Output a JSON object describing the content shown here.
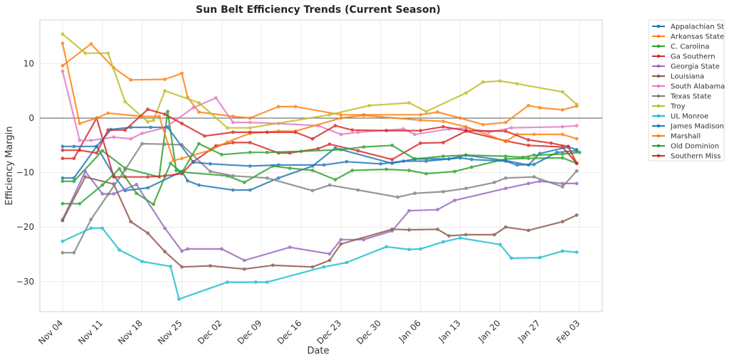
{
  "chart_data": {
    "type": "line",
    "title": "Sun Belt Efficiency Trends (Current Season)",
    "xlabel": "Date",
    "ylabel": "Efficiency Margin",
    "x_start_date": "Nov 04",
    "x_unit": "days since Nov 04",
    "xlim_days": [
      -4,
      95
    ],
    "ylim": [
      -35.5,
      18
    ],
    "x_ticks": [
      {
        "day": 0,
        "label": "Nov 04"
      },
      {
        "day": 7,
        "label": "Nov 11"
      },
      {
        "day": 14,
        "label": "Nov 18"
      },
      {
        "day": 21,
        "label": "Nov 25"
      },
      {
        "day": 28,
        "label": "Dec 02"
      },
      {
        "day": 35,
        "label": "Dec 09"
      },
      {
        "day": 42,
        "label": "Dec 16"
      },
      {
        "day": 49,
        "label": "Dec 23"
      },
      {
        "day": 56,
        "label": "Dec 30"
      },
      {
        "day": 63,
        "label": "Jan 06"
      },
      {
        "day": 70,
        "label": "Jan 13"
      },
      {
        "day": 77,
        "label": "Jan 20"
      },
      {
        "day": 84,
        "label": "Jan 27"
      },
      {
        "day": 91,
        "label": "Feb 03"
      }
    ],
    "y_ticks": [
      {
        "value": 10,
        "label": "10"
      },
      {
        "value": 0,
        "label": "0"
      },
      {
        "value": -10,
        "label": "−10"
      },
      {
        "value": -20,
        "label": "−20"
      },
      {
        "value": -30,
        "label": "−30"
      }
    ],
    "grid": true,
    "zero_line": true,
    "legend_position": "outside-top-right",
    "series": [
      {
        "name": "Appalachian St",
        "color": "#1f77b4",
        "x": [
          0,
          2,
          6,
          9,
          11,
          15,
          21,
          22,
          24,
          30,
          33,
          38,
          44,
          48,
          58,
          62,
          68,
          71,
          78,
          82,
          84,
          89,
          90.5
        ],
        "y": [
          -11,
          -11,
          -5.2,
          -10.5,
          -13.3,
          -12.8,
          -9.8,
          -11.5,
          -12.3,
          -13.2,
          -13.2,
          -11,
          -8.8,
          -5.5,
          -8.3,
          -7.5,
          -7.5,
          -6.8,
          -7.8,
          -8.6,
          -6.5,
          -5.3,
          -5.8
        ]
      },
      {
        "name": "Arkansas State",
        "color": "#ff7f0e",
        "x": [
          0,
          5,
          9,
          12,
          18,
          21,
          22,
          24,
          30,
          33,
          38,
          41,
          49,
          53,
          63,
          66,
          70,
          74,
          78,
          82,
          84,
          88,
          90.5
        ],
        "y": [
          9.6,
          13.6,
          9.2,
          7.0,
          7.1,
          8.2,
          3.8,
          1.1,
          0.3,
          0.0,
          2.1,
          2.1,
          0.6,
          0.6,
          0.6,
          1.1,
          0.0,
          -1.2,
          -0.8,
          2.3,
          1.9,
          1.5,
          2.2
        ]
      },
      {
        "name": "C. Carolina",
        "color": "#2ca02c",
        "x": [
          0,
          2,
          7,
          11,
          17,
          18.5,
          20,
          21,
          29,
          32,
          37,
          40,
          44,
          48,
          51,
          57,
          61,
          64,
          69,
          72,
          78,
          82,
          88,
          90.5
        ],
        "y": [
          -11.6,
          -11.6,
          -6,
          -9.2,
          -10.8,
          1.2,
          -9.6,
          -9.9,
          -10.6,
          -11.8,
          -8.8,
          -9.2,
          -9.6,
          -11.3,
          -9.6,
          -9.4,
          -9.6,
          -10.2,
          -9.8,
          -9.0,
          -7.5,
          -7.4,
          -7.3,
          -8.3
        ]
      },
      {
        "name": "Ga Southern",
        "color": "#d62728",
        "x": [
          0,
          2,
          6,
          9,
          11,
          15,
          18,
          21,
          23,
          27,
          30,
          33,
          38,
          40,
          45,
          47,
          52,
          58,
          63,
          67,
          71,
          78,
          82,
          88,
          90.5
        ],
        "y": [
          -7.4,
          -7.4,
          0,
          -10.8,
          -10.8,
          -10.8,
          -10.6,
          -10.2,
          -8.0,
          -5.1,
          -4.5,
          -4.5,
          -6.4,
          -6.4,
          -5.6,
          -4.8,
          -6.0,
          -7.6,
          -4.6,
          -4.5,
          -2.4,
          -4.2,
          -5.0,
          -5.3,
          -8.3
        ]
      },
      {
        "name": "Georgia State",
        "color": "#9467bd",
        "x": [
          0,
          4,
          7,
          9,
          13,
          18,
          21,
          22,
          28,
          32,
          40,
          47,
          49,
          53,
          58,
          61,
          66,
          69,
          78,
          82,
          84,
          88,
          90.5
        ],
        "y": [
          -18.6,
          -9.8,
          -13.9,
          -13.9,
          -12.2,
          -20.2,
          -24.4,
          -24.0,
          -24.0,
          -26.1,
          -23.7,
          -24.9,
          -22.3,
          -22.3,
          -20.7,
          -17.0,
          -16.8,
          -15.1,
          -12.9,
          -12.0,
          -11.6,
          -12.0,
          -12.0
        ]
      },
      {
        "name": "Louisiana",
        "color": "#8c564b",
        "x": [
          0,
          4,
          9,
          12,
          15,
          18,
          21,
          26,
          32,
          37,
          44,
          47,
          49,
          58,
          61,
          66,
          68,
          71,
          76,
          78,
          82,
          88,
          90.5
        ],
        "y": [
          -18.8,
          -10.8,
          -12.1,
          -19.0,
          -21.1,
          -24.5,
          -27.3,
          -27.1,
          -27.7,
          -27.0,
          -27.3,
          -26.1,
          -23.1,
          -20.4,
          -20.5,
          -20.4,
          -21.6,
          -21.4,
          -21.4,
          -20.0,
          -20.6,
          -19.0,
          -17.8
        ]
      },
      {
        "name": "South Alabama",
        "color": "#e377c2",
        "x": [
          0,
          3,
          5,
          7,
          9,
          12,
          14,
          18,
          23,
          27,
          30,
          33,
          38,
          45,
          49,
          52,
          60,
          62,
          68,
          71,
          75,
          79,
          88,
          90.5
        ],
        "y": [
          8.6,
          -4.1,
          -4.1,
          -3.8,
          -3.5,
          -3.8,
          -2.8,
          -1.8,
          1.9,
          3.7,
          -0.8,
          -0.8,
          -1.0,
          -1.4,
          -3.0,
          -2.6,
          -2.0,
          -3.0,
          -2.0,
          -1.8,
          -2.6,
          -1.8,
          -1.6,
          -1.4
        ]
      },
      {
        "name": "Texas State",
        "color": "#7f7f7f",
        "x": [
          0,
          2,
          5,
          8,
          11,
          14,
          18,
          21,
          26,
          30,
          36,
          44,
          47,
          52,
          59,
          62,
          67,
          71,
          76,
          78,
          83,
          88,
          90.5
        ],
        "y": [
          -24.7,
          -24.7,
          -18.6,
          -14.0,
          -9.5,
          -4.7,
          -4.8,
          -4.9,
          -9.8,
          -10.6,
          -11.0,
          -13.3,
          -12.3,
          -13.2,
          -14.5,
          -13.8,
          -13.5,
          -12.9,
          -11.8,
          -11.0,
          -10.8,
          -12.6,
          -9.7
        ]
      },
      {
        "name": "Troy",
        "color": "#bcbd22",
        "x": [
          0,
          4,
          8,
          11,
          15,
          16,
          18,
          24,
          29,
          33,
          47,
          54,
          61,
          64,
          71,
          74,
          77,
          80,
          88,
          90.5
        ],
        "y": [
          15.4,
          11.9,
          11.9,
          3.0,
          -0.7,
          -0.4,
          5.0,
          2.8,
          -1.8,
          -1.8,
          0.6,
          2.3,
          2.8,
          1.2,
          4.6,
          6.6,
          6.8,
          6.3,
          4.8,
          2.5
        ]
      },
      {
        "name": "UL Monroe",
        "color": "#17becf",
        "x": [
          0,
          5,
          7,
          10,
          14,
          19,
          20.5,
          29,
          34,
          36,
          46,
          50,
          57,
          61,
          63,
          67,
          70,
          77,
          79,
          84,
          88,
          90.5
        ],
        "y": [
          -22.6,
          -20.2,
          -20.2,
          -24.2,
          -26.3,
          -27.2,
          -33.2,
          -30.1,
          -30.1,
          -30.1,
          -27.3,
          -26.5,
          -23.6,
          -24.1,
          -24.0,
          -22.7,
          -22.0,
          -23.2,
          -25.7,
          -25.6,
          -24.4,
          -24.6
        ]
      },
      {
        "name": "James Madison",
        "color": "#1f77b4",
        "x": [
          0,
          2,
          6,
          8.5,
          12,
          15.5,
          18.5,
          23,
          26,
          33,
          38,
          46,
          50,
          56,
          60,
          64,
          70,
          72,
          78,
          80,
          83,
          87,
          90.5
        ],
        "y": [
          -5.2,
          -5.2,
          -5.2,
          -2.1,
          -1.7,
          -1.7,
          -1.7,
          -8.1,
          -8.4,
          -8.8,
          -8.6,
          -8.6,
          -8.0,
          -8.4,
          -7.9,
          -7.9,
          -7.3,
          -7.6,
          -7.9,
          -8.6,
          -8.5,
          -6.3,
          -6.0
        ]
      },
      {
        "name": "Marshall",
        "color": "#ff7f0e",
        "x": [
          0,
          3,
          6,
          8,
          14,
          17,
          19.5,
          21,
          26,
          29,
          33,
          38,
          41,
          49,
          53,
          63,
          67,
          71,
          78,
          80,
          83,
          88,
          90.5
        ],
        "y": [
          13.7,
          -1.0,
          0.0,
          0.9,
          0.3,
          0.3,
          -7.8,
          -7.4,
          -5.9,
          -4.4,
          -2.8,
          -2.4,
          -2.4,
          0.0,
          0.5,
          -0.4,
          -0.6,
          -1.6,
          -4.3,
          -3.0,
          -3.0,
          -3.0,
          -3.8
        ]
      },
      {
        "name": "Old Dominion",
        "color": "#2ca02c",
        "x": [
          0,
          3,
          7,
          10,
          13,
          16,
          19,
          21,
          24,
          28,
          33,
          36,
          42,
          49,
          53,
          58,
          62,
          67,
          71,
          78,
          81,
          83,
          88,
          91
        ],
        "y": [
          -15.7,
          -15.7,
          -12.3,
          -9.3,
          -13.8,
          -15.8,
          -8.3,
          -10.0,
          -4.7,
          -6.7,
          -6.3,
          -6.3,
          -6.1,
          -5.8,
          -5.3,
          -5.0,
          -7.5,
          -7.0,
          -6.8,
          -7.0,
          -7.2,
          -6.8,
          -6.6,
          -6.3
        ]
      },
      {
        "name": "Southern Miss",
        "color": "#d62728",
        "x": [
          0,
          3,
          6,
          8,
          11,
          15,
          18,
          21,
          25,
          30,
          33,
          36,
          41,
          44,
          48,
          51,
          57,
          63,
          67,
          71,
          78,
          82,
          86,
          89,
          90.5
        ],
        "y": [
          -5.9,
          -5.9,
          -6.4,
          -2.2,
          -2.2,
          1.6,
          0.7,
          -1.0,
          -3.3,
          -2.6,
          -2.6,
          -2.6,
          -2.6,
          -3.8,
          -1.4,
          -2.2,
          -2.3,
          -2.3,
          -1.6,
          -2.3,
          -2.4,
          -4.0,
          -4.6,
          -5.2,
          -8.3
        ]
      }
    ]
  }
}
